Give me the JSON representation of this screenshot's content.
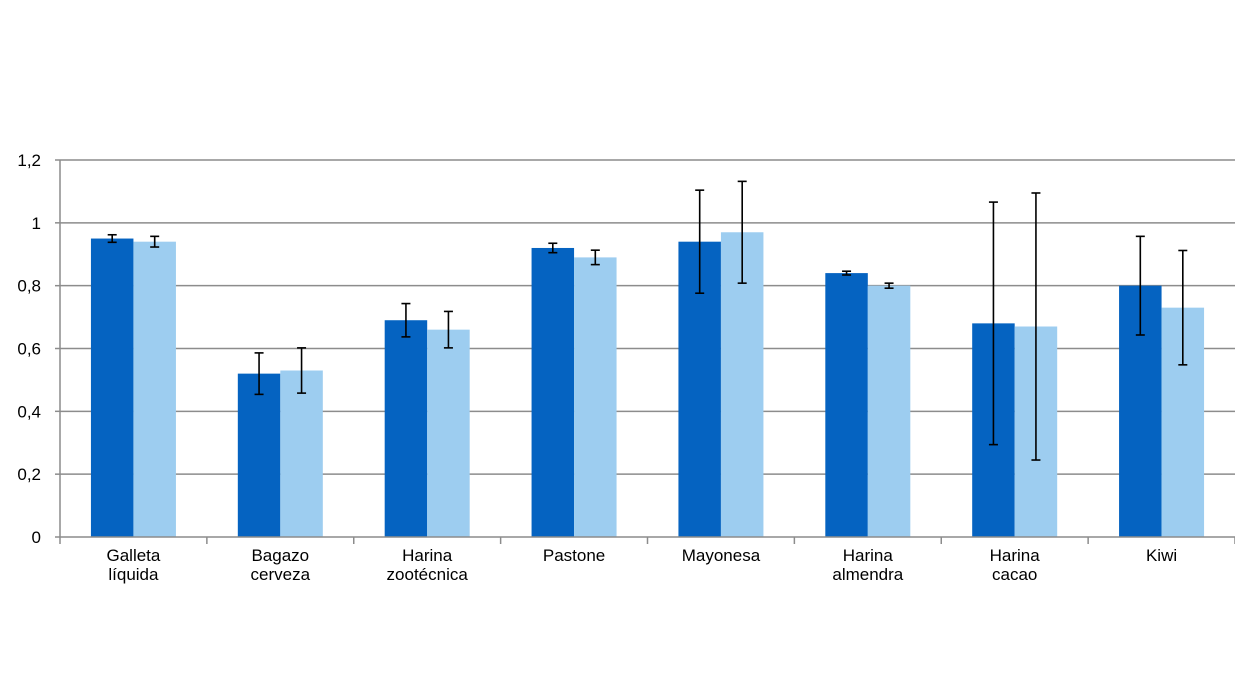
{
  "chart_data": {
    "type": "bar",
    "title": "",
    "xlabel": "",
    "ylabel": "",
    "ylim": [
      0,
      1.2
    ],
    "y_ticks": [
      "0",
      "0,2",
      "0,4",
      "0,6",
      "0,8",
      "1",
      "1,2"
    ],
    "grid": true,
    "legend": "none",
    "categories": [
      [
        "Galleta",
        "líquida"
      ],
      [
        "Bagazo",
        "cerveza"
      ],
      [
        "Harina",
        "zootécnica"
      ],
      [
        "Pastone"
      ],
      [
        "Mayonesa"
      ],
      [
        "Harina",
        "almendra"
      ],
      [
        "Harina",
        "cacao"
      ],
      [
        "Kiwi"
      ]
    ],
    "series": [
      {
        "color": "#0563c1",
        "values": [
          0.95,
          0.52,
          0.69,
          0.92,
          0.94,
          0.84,
          0.68,
          0.8
        ],
        "error": [
          0.012,
          0.066,
          0.053,
          0.015,
          0.164,
          0.006,
          0.386,
          0.157
        ]
      },
      {
        "color": "#9dcdf0",
        "values": [
          0.94,
          0.53,
          0.66,
          0.89,
          0.97,
          0.8,
          0.67,
          0.73
        ],
        "error": [
          0.017,
          0.072,
          0.058,
          0.023,
          0.162,
          0.008,
          0.425,
          0.182
        ]
      }
    ]
  }
}
